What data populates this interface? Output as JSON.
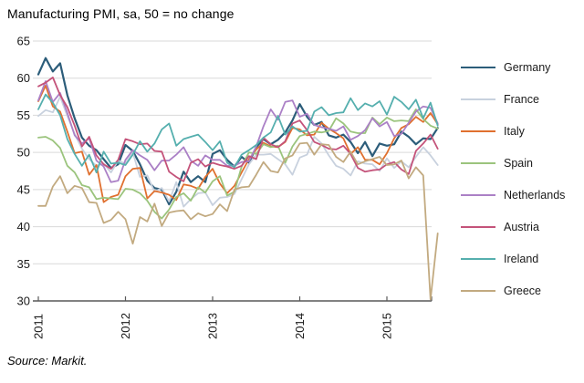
{
  "chart": {
    "title": "Manufacturing PMI, sa, 50 = no change",
    "source": "Source: Markit."
  },
  "chart_data": {
    "type": "line",
    "title": "Manufacturing PMI, sa, 50 = no change",
    "source": "Source: Markit.",
    "x_unit": "month",
    "x_start": "2011-01",
    "x_end": "2015-08",
    "x_tick_labels": [
      "2011",
      "2012",
      "2013",
      "2014",
      "2015"
    ],
    "y_ticks": [
      30,
      35,
      40,
      45,
      50,
      55,
      60,
      65
    ],
    "ylim": [
      30,
      65
    ],
    "grid": "horizontal",
    "grid_color": "#d9d9d9",
    "axis_color": "#595959",
    "tick_label_color": "#1a1a1a",
    "legend_position": "right",
    "series": [
      {
        "name": "Germany",
        "color": "#2c5d7a",
        "values": [
          60.5,
          62.7,
          60.9,
          62.0,
          57.7,
          54.6,
          52.0,
          50.9,
          50.3,
          49.1,
          47.9,
          48.4,
          51.0,
          50.2,
          48.4,
          46.2,
          45.2,
          45.0,
          43.0,
          44.7,
          47.4,
          46.0,
          46.8,
          46.0,
          49.8,
          50.3,
          49.0,
          48.1,
          49.4,
          48.6,
          50.7,
          51.8,
          51.1,
          51.7,
          52.7,
          54.3,
          56.5,
          54.8,
          53.7,
          54.1,
          52.3,
          52.0,
          52.4,
          51.4,
          49.9,
          51.4,
          49.5,
          51.2,
          50.9,
          51.1,
          52.8,
          52.1,
          51.1,
          51.9,
          51.8,
          53.3
        ]
      },
      {
        "name": "France",
        "color": "#c8d1de",
        "values": [
          54.9,
          55.7,
          55.4,
          57.5,
          54.9,
          52.5,
          50.5,
          49.1,
          48.2,
          48.5,
          47.3,
          48.9,
          48.5,
          50.0,
          46.7,
          46.9,
          44.7,
          45.2,
          43.4,
          46.0,
          42.7,
          43.7,
          44.5,
          44.6,
          42.9,
          43.9,
          44.0,
          44.4,
          46.4,
          48.4,
          49.7,
          49.7,
          49.8,
          49.1,
          48.4,
          47.0,
          49.3,
          49.7,
          52.1,
          51.2,
          49.6,
          48.2,
          47.8,
          46.9,
          48.8,
          48.5,
          48.4,
          47.5,
          49.2,
          47.9,
          48.8,
          48.0,
          49.4,
          50.7,
          49.6,
          48.3
        ]
      },
      {
        "name": "Italy",
        "color": "#e0702f",
        "values": [
          56.9,
          59.0,
          56.2,
          55.5,
          52.8,
          49.9,
          50.1,
          47.0,
          48.3,
          43.3,
          44.0,
          44.3,
          46.8,
          47.8,
          47.9,
          43.8,
          44.8,
          44.6,
          44.3,
          43.6,
          45.7,
          45.5,
          45.1,
          46.7,
          47.8,
          45.8,
          44.5,
          45.5,
          47.3,
          49.1,
          50.4,
          51.3,
          50.8,
          50.7,
          51.4,
          53.3,
          53.1,
          52.3,
          52.4,
          54.0,
          53.2,
          52.6,
          51.9,
          49.8,
          50.7,
          49.0,
          49.0,
          48.4,
          49.9,
          51.9,
          53.3,
          53.8,
          54.8,
          54.1,
          55.3,
          53.8
        ]
      },
      {
        "name": "Spain",
        "color": "#9bc47d",
        "values": [
          52.0,
          52.1,
          51.6,
          50.6,
          48.2,
          47.3,
          45.6,
          45.3,
          43.7,
          43.9,
          43.8,
          43.7,
          45.1,
          45.0,
          44.5,
          43.5,
          42.0,
          41.1,
          42.3,
          44.0,
          44.5,
          43.5,
          45.3,
          44.6,
          46.1,
          46.8,
          44.2,
          44.7,
          48.1,
          50.0,
          49.8,
          51.1,
          50.7,
          50.9,
          48.6,
          50.8,
          52.2,
          52.5,
          52.8,
          52.7,
          52.9,
          54.6,
          53.9,
          52.8,
          52.6,
          52.6,
          54.7,
          53.8,
          54.7,
          54.2,
          54.3,
          54.2,
          55.8,
          54.5,
          53.6,
          53.2
        ]
      },
      {
        "name": "Netherlands",
        "color": "#ab80c6",
        "values": [
          57.0,
          59.6,
          56.8,
          58.0,
          55.3,
          52.3,
          51.2,
          51.9,
          48.9,
          48.1,
          46.0,
          46.2,
          49.0,
          50.3,
          49.6,
          49.0,
          47.6,
          48.9,
          48.9,
          49.7,
          50.7,
          48.9,
          48.2,
          49.6,
          49.0,
          49.0,
          48.2,
          48.2,
          48.7,
          48.8,
          50.8,
          53.5,
          55.8,
          54.4,
          56.8,
          57.0,
          54.8,
          55.2,
          53.7,
          53.4,
          53.2,
          52.9,
          53.5,
          51.7,
          52.2,
          53.0,
          54.6,
          53.5,
          54.1,
          52.2,
          52.5,
          54.0,
          55.5,
          56.2,
          56.0,
          53.9
        ]
      },
      {
        "name": "Austria",
        "color": "#c4537a",
        "values": [
          58.9,
          59.4,
          60.1,
          57.7,
          56.1,
          53.6,
          50.8,
          52.1,
          49.6,
          48.4,
          47.8,
          49.0,
          51.8,
          51.5,
          51.1,
          51.2,
          50.2,
          50.1,
          47.4,
          46.7,
          46.1,
          48.6,
          49.1,
          48.1,
          48.6,
          48.3,
          48.1,
          47.8,
          48.2,
          49.5,
          49.1,
          52.0,
          51.1,
          50.7,
          51.5,
          53.9,
          54.3,
          53.0,
          51.4,
          51.0,
          50.5,
          50.4,
          50.9,
          49.8,
          47.9,
          47.4,
          47.6,
          47.7,
          48.4,
          48.7,
          47.7,
          47.1,
          50.2,
          51.2,
          52.4,
          50.5
        ]
      },
      {
        "name": "Ireland",
        "color": "#55afae",
        "values": [
          55.8,
          57.8,
          56.7,
          55.0,
          51.8,
          49.8,
          48.2,
          49.7,
          47.3,
          50.1,
          48.5,
          48.6,
          48.3,
          49.7,
          51.5,
          50.1,
          51.2,
          53.1,
          53.9,
          50.9,
          51.8,
          52.1,
          52.4,
          51.4,
          50.3,
          51.5,
          48.6,
          48.0,
          49.7,
          50.3,
          51.0,
          52.0,
          52.7,
          54.9,
          52.4,
          53.5,
          52.8,
          52.9,
          55.5,
          56.1,
          55.0,
          55.3,
          55.4,
          57.3,
          55.7,
          56.6,
          56.2,
          56.9,
          55.1,
          57.5,
          56.8,
          55.8,
          57.1,
          54.6,
          56.7,
          53.6
        ]
      },
      {
        "name": "Greece",
        "color": "#c2aa80",
        "values": [
          42.8,
          42.8,
          45.4,
          46.8,
          44.5,
          45.5,
          45.2,
          43.3,
          43.2,
          40.5,
          40.9,
          42.0,
          41.0,
          37.7,
          41.3,
          40.7,
          43.1,
          40.1,
          41.9,
          42.1,
          42.2,
          41.0,
          41.8,
          41.4,
          41.7,
          43.0,
          42.1,
          45.0,
          45.3,
          45.4,
          47.0,
          48.7,
          47.5,
          47.3,
          49.2,
          49.6,
          51.2,
          51.3,
          49.7,
          51.1,
          51.0,
          49.4,
          48.7,
          50.1,
          48.4,
          48.8,
          49.1,
          49.4,
          48.3,
          48.4,
          48.9,
          46.5,
          48.0,
          46.9,
          30.2,
          39.1
        ]
      }
    ]
  }
}
